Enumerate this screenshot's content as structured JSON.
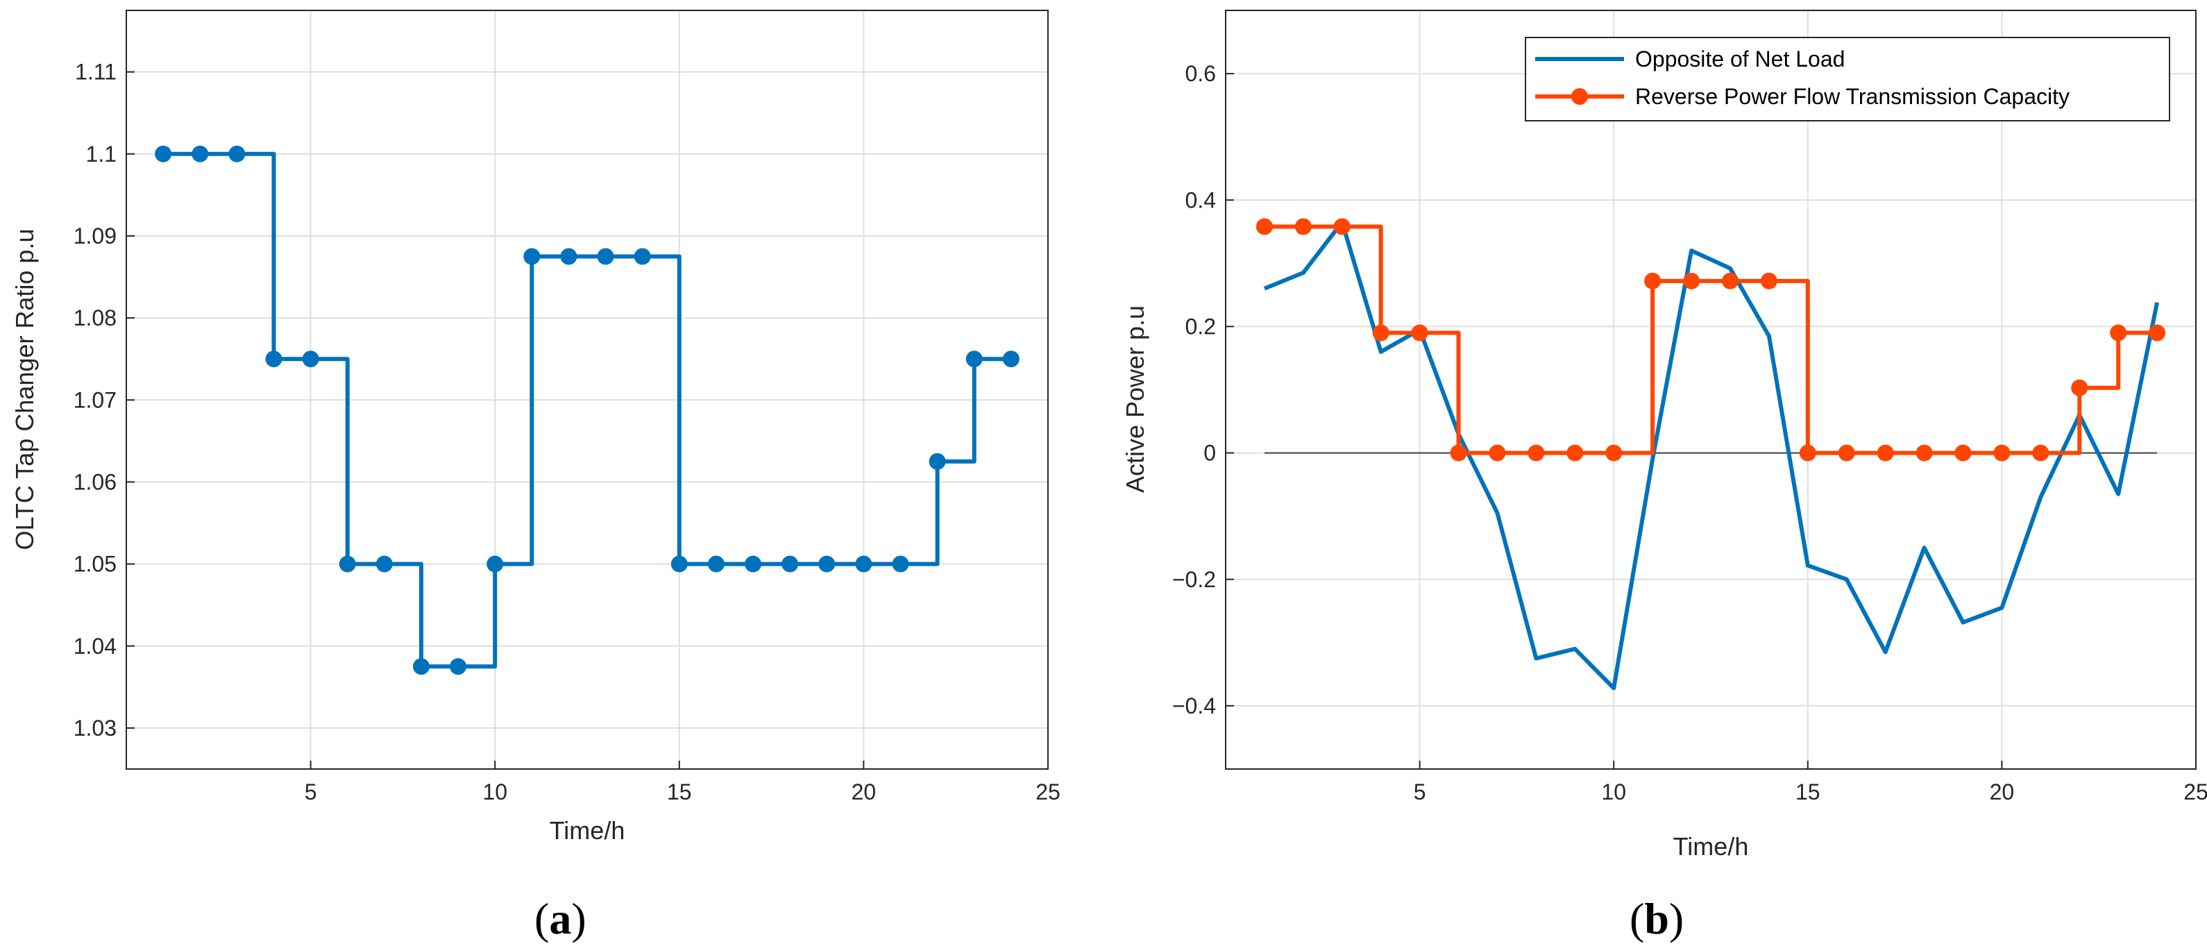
{
  "chart_data": [
    {
      "type": "line",
      "panel_label_open": "(",
      "panel_label_letter": "a",
      "panel_label_close": ")",
      "title": "",
      "xlabel": "Time/h",
      "ylabel": "OLTC Tap Changer Ratio p.u",
      "xlim": [
        0,
        25
      ],
      "ylim": [
        1.025,
        1.1175
      ],
      "grid": true,
      "xticks": [
        5,
        10,
        15,
        20,
        25
      ],
      "xtick_labels": [
        "5",
        "10",
        "15",
        "20",
        "25"
      ],
      "yticks": [
        1.03,
        1.04,
        1.05,
        1.06,
        1.07,
        1.08,
        1.09,
        1.1,
        1.11
      ],
      "ytick_labels": [
        "1.03",
        "1.04",
        "1.05",
        "1.06",
        "1.07",
        "1.08",
        "1.09",
        "1.1",
        "1.11"
      ],
      "series": [
        {
          "name": "OLTC Tap Changer Ratio",
          "style": "stairs-with-markers",
          "color": "#0072BD",
          "x": [
            1,
            2,
            3,
            4,
            5,
            6,
            7,
            8,
            9,
            10,
            11,
            12,
            13,
            14,
            15,
            16,
            17,
            18,
            19,
            20,
            21,
            22,
            23,
            24
          ],
          "values": [
            1.1,
            1.1,
            1.1,
            1.075,
            1.075,
            1.05,
            1.05,
            1.0375,
            1.0375,
            1.05,
            1.0875,
            1.0875,
            1.0875,
            1.0875,
            1.05,
            1.05,
            1.05,
            1.05,
            1.05,
            1.05,
            1.05,
            1.0625,
            1.075,
            1.075
          ]
        }
      ]
    },
    {
      "type": "line",
      "panel_label_open": "(",
      "panel_label_letter": "b",
      "panel_label_close": ")",
      "title": "",
      "xlabel": "Time/h",
      "ylabel": "Active Power p.u",
      "xlim": [
        0,
        25
      ],
      "ylim": [
        -0.5,
        0.7
      ],
      "grid": true,
      "legend_position": "top-right",
      "xticks": [
        5,
        10,
        15,
        20,
        25
      ],
      "xtick_labels": [
        "5",
        "10",
        "15",
        "20",
        "25"
      ],
      "yticks": [
        -0.4,
        -0.2,
        0,
        0.2,
        0.4,
        0.6
      ],
      "ytick_labels": [
        "−0.4",
        "−0.2",
        "0",
        "0.2",
        "0.4",
        "0.6"
      ],
      "zero_line_color": "#404040",
      "series": [
        {
          "name": "Opposite of Net Load",
          "style": "line",
          "color": "#0072BD",
          "x": [
            1,
            2,
            3,
            4,
            5,
            6,
            7,
            8,
            9,
            10,
            11,
            12,
            13,
            14,
            15,
            16,
            17,
            18,
            19,
            20,
            21,
            22,
            23,
            24
          ],
          "values": [
            0.26,
            0.285,
            0.365,
            0.16,
            0.195,
            0.03,
            -0.095,
            -0.325,
            -0.31,
            -0.372,
            -0.01,
            0.32,
            0.292,
            0.185,
            -0.178,
            -0.2,
            -0.315,
            -0.15,
            -0.268,
            -0.245,
            -0.07,
            0.06,
            -0.065,
            0.238
          ]
        },
        {
          "name": "Reverse Power Flow Transmission Capacity",
          "style": "stairs-with-markers",
          "color": "#FF4500",
          "x": [
            1,
            2,
            3,
            4,
            5,
            6,
            7,
            8,
            9,
            10,
            11,
            12,
            13,
            14,
            15,
            16,
            17,
            18,
            19,
            20,
            21,
            22,
            23,
            24
          ],
          "values": [
            0.358,
            0.358,
            0.358,
            0.19,
            0.19,
            0,
            0,
            0,
            0,
            0,
            0.272,
            0.272,
            0.272,
            0.272,
            0,
            0,
            0,
            0,
            0,
            0,
            0,
            0.103,
            0.19,
            0.19
          ]
        }
      ]
    }
  ]
}
